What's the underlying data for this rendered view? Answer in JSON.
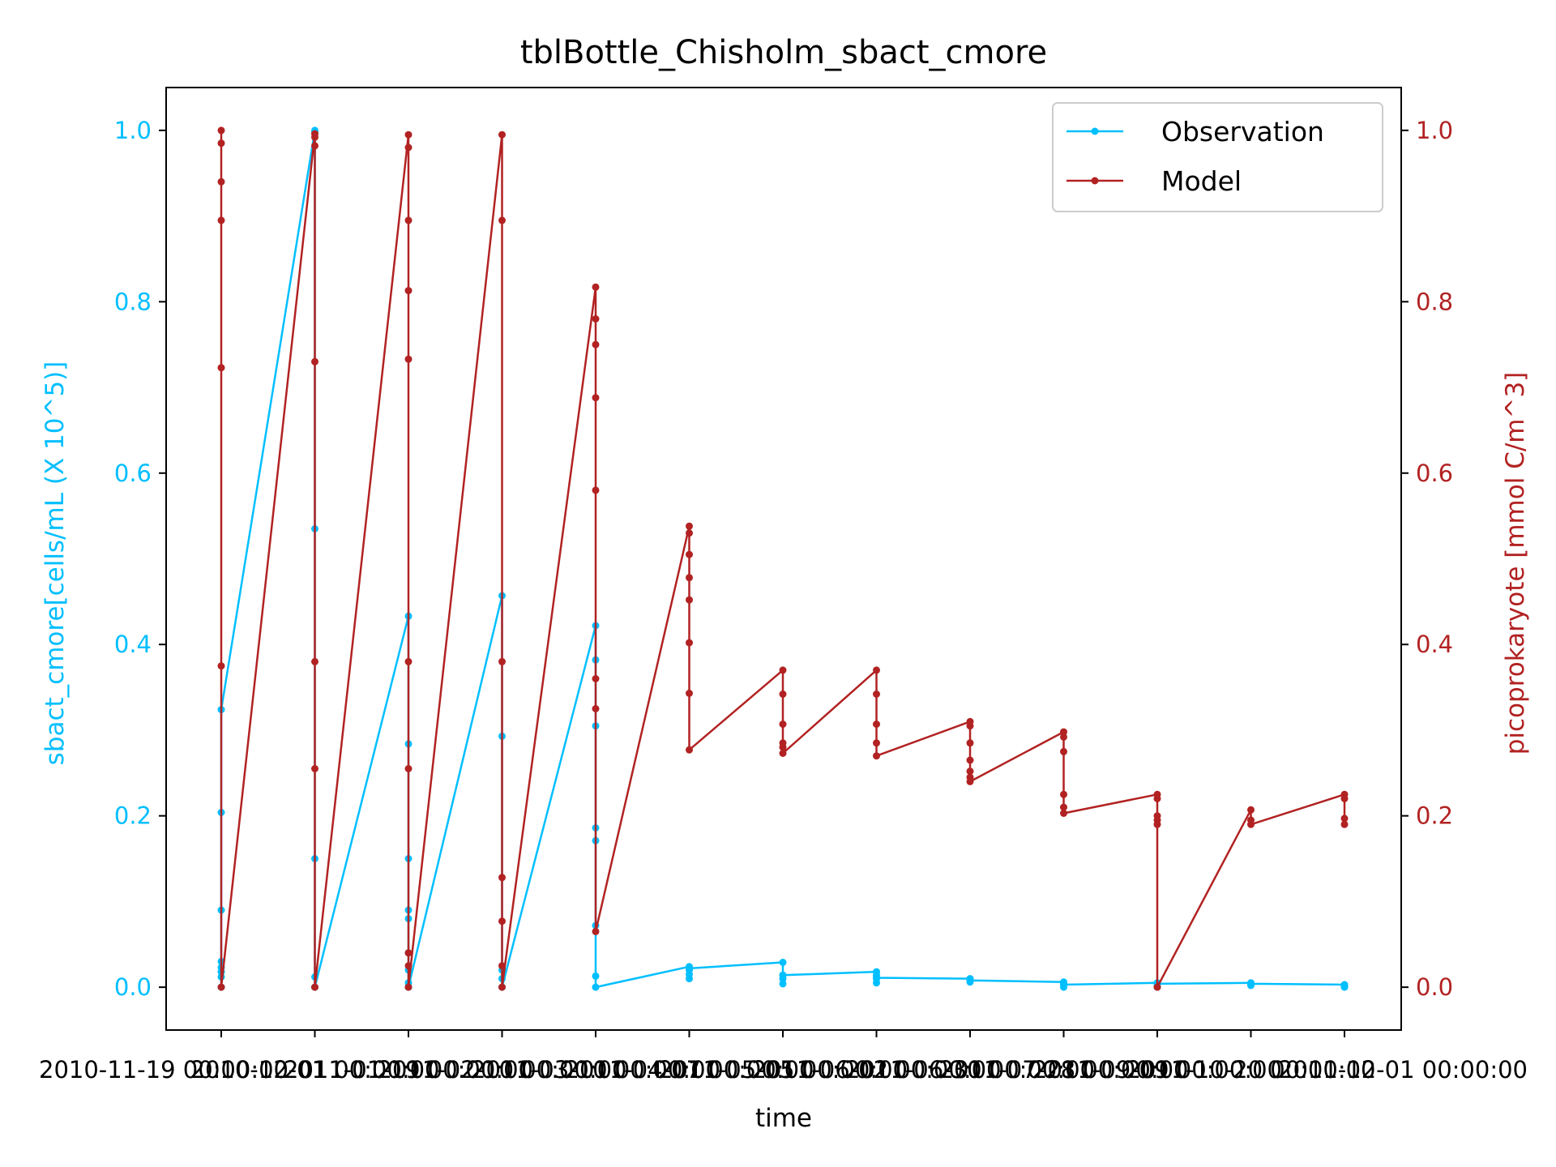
{
  "chart_data": {
    "type": "line",
    "title": "tblBottle_Chisholm_sbact_cmore",
    "xlabel": "time",
    "ylabel_left": "sbact_cmore[cells/mL (X 10^5)]",
    "ylabel_right": "picoprokaryote [mmol C/m^3]",
    "ylim_left": [
      -0.05,
      1.05
    ],
    "ylim_right": [
      -0.05,
      1.05
    ],
    "y_ticks": [
      0.0,
      0.2,
      0.4,
      0.6,
      0.8,
      1.0
    ],
    "y_tick_labels": [
      "0.0",
      "0.2",
      "0.4",
      "0.6",
      "0.8",
      "1.0"
    ],
    "x_tick_labels": [
      "2010-11-19 00:00:00",
      "2010-12-01 00:00:00",
      "2011-01-19 00:00:00",
      "2011-02-10 00:00:00",
      "2011-03-10 00:00:00",
      "2011-04-07 00:00:00",
      "2011-05-05 00:00:00",
      "2011-06-02 00:00:00",
      "2011-06-30 00:00:00",
      "2011-07-28 00:00:00",
      "2011-09-09 00:00:00",
      "2011-10-20 00:00:00",
      "2011-12-01 00:00:00"
    ],
    "grid": false,
    "legend_position": "top-right",
    "series": [
      {
        "name": "Observation",
        "color": "#00bfff",
        "marker": "dot",
        "axis": "left",
        "groups": [
          [
            0.0,
            0.03,
            0.023,
            0.018,
            0.012,
            0.09,
            0.204,
            0.324
          ],
          [
            1.0,
            0.998,
            0.535,
            0.15,
            0.012,
            0.0
          ],
          [
            0.433,
            0.284,
            0.15,
            0.09,
            0.08,
            0.04,
            0.02,
            0.005,
            0.0
          ],
          [
            0.457,
            0.293,
            0.02,
            0.01,
            0.0
          ],
          [
            0.422,
            0.382,
            0.305,
            0.186,
            0.171,
            0.072,
            0.013,
            0.0
          ],
          [
            0.024,
            0.02,
            0.015,
            0.01,
            0.022
          ],
          [
            0.029,
            0.014,
            0.01,
            0.004,
            0.014
          ],
          [
            0.018,
            0.014,
            0.01,
            0.005,
            0.011
          ],
          [
            0.01,
            0.008,
            0.006,
            0.008
          ],
          [
            0.006,
            0.004,
            0.0,
            0.003
          ],
          [
            0.005,
            0.003,
            0.0,
            0.004
          ],
          [
            0.005,
            0.003,
            0.002,
            0.004
          ],
          [
            0.003,
            0.0,
            0.002,
            0.001
          ]
        ]
      },
      {
        "name": "Model",
        "color": "#b22222",
        "marker": "dot",
        "axis": "right",
        "groups": [
          [
            1.0,
            0.985,
            0.94,
            0.895,
            0.723,
            0.375,
            0.0
          ],
          [
            0.996,
            0.992,
            0.982,
            0.73,
            0.38,
            0.255,
            0.0
          ],
          [
            0.995,
            0.98,
            0.895,
            0.813,
            0.733,
            0.38,
            0.255,
            0.04,
            0.025,
            0.0
          ],
          [
            0.995,
            0.895,
            0.38,
            0.128,
            0.077,
            0.025,
            0.0
          ],
          [
            0.817,
            0.78,
            0.75,
            0.688,
            0.58,
            0.36,
            0.325,
            0.065
          ],
          [
            0.538,
            0.53,
            0.505,
            0.478,
            0.452,
            0.402,
            0.343,
            0.277
          ],
          [
            0.37,
            0.342,
            0.307,
            0.285,
            0.28,
            0.273
          ],
          [
            0.37,
            0.342,
            0.307,
            0.285,
            0.27
          ],
          [
            0.31,
            0.305,
            0.285,
            0.265,
            0.252,
            0.245,
            0.24
          ],
          [
            0.298,
            0.292,
            0.275,
            0.225,
            0.21,
            0.203
          ],
          [
            0.225,
            0.22,
            0.2,
            0.195,
            0.19,
            0.0
          ],
          [
            0.207,
            0.195,
            0.19
          ],
          [
            0.225,
            0.22,
            0.197,
            0.19
          ]
        ]
      }
    ]
  },
  "legend": {
    "observation_label": "Observation",
    "model_label": "Model"
  }
}
